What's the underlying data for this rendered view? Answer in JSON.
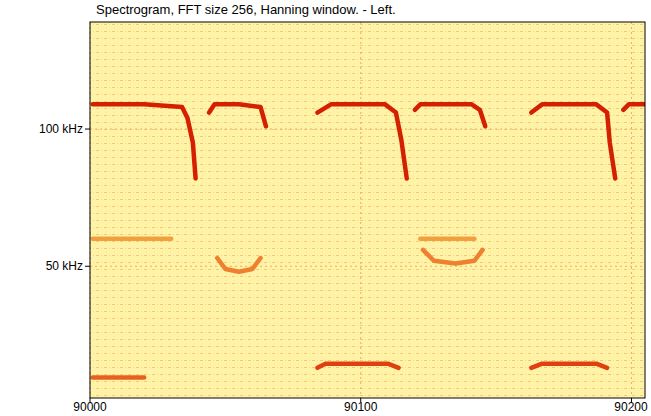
{
  "chart_data": {
    "type": "line",
    "title": "Spectrogram, FFT size 256, Hanning window. - Left.",
    "xlim": [
      90000,
      90205
    ],
    "ylim": [
      2,
      139
    ],
    "xticks": [
      90000,
      90100,
      90200
    ],
    "yticks": [
      {
        "value": 50,
        "label": "50 kHz"
      },
      {
        "value": 100,
        "label": "100 kHz"
      }
    ],
    "grid": true,
    "series": [
      {
        "color": "#d42000",
        "x": [
          90001,
          90020,
          90034,
          90036,
          90038,
          90039
        ],
        "values": [
          109,
          109,
          108,
          104,
          95,
          82
        ]
      },
      {
        "color": "#d42000",
        "x": [
          90044,
          90046,
          90055,
          90063,
          90065
        ],
        "values": [
          106,
          109,
          109,
          108,
          101
        ]
      },
      {
        "color": "#d42000",
        "x": [
          90084,
          90089,
          90109,
          90113,
          90115,
          90117
        ],
        "values": [
          106,
          109,
          109,
          106,
          96,
          82
        ]
      },
      {
        "color": "#d42000",
        "x": [
          90120,
          90122,
          90141,
          90144,
          90146
        ],
        "values": [
          107,
          109,
          109,
          107,
          101
        ]
      },
      {
        "color": "#d42000",
        "x": [
          90163,
          90167,
          90187,
          90191,
          90192,
          90194
        ],
        "values": [
          106,
          109,
          109,
          106,
          95,
          82
        ]
      },
      {
        "color": "#d42000",
        "x": [
          90197,
          90199,
          90205
        ],
        "values": [
          107,
          109,
          109
        ]
      },
      {
        "color": "#f0a040",
        "x": [
          90001,
          90030
        ],
        "values": [
          60,
          60
        ]
      },
      {
        "color": "#f0a040",
        "x": [
          90122,
          90142
        ],
        "values": [
          60,
          60
        ]
      },
      {
        "color": "#ee8030",
        "x": [
          90047,
          90050,
          90055,
          90060,
          90063
        ],
        "values": [
          53,
          49,
          48,
          49,
          53
        ]
      },
      {
        "color": "#ee8030",
        "x": [
          90123,
          90127,
          90135,
          90142,
          90145
        ],
        "values": [
          56,
          52,
          51,
          52,
          56
        ]
      },
      {
        "color": "#e04010",
        "x": [
          90084,
          90087,
          90110,
          90114
        ],
        "values": [
          13,
          14.5,
          14.5,
          13
        ]
      },
      {
        "color": "#e04010",
        "x": [
          90163,
          90167,
          90187,
          90191
        ],
        "values": [
          13,
          14.5,
          14.5,
          13
        ]
      },
      {
        "color": "#e86020",
        "x": [
          90001,
          90020
        ],
        "values": [
          9.5,
          9.5
        ]
      }
    ]
  }
}
